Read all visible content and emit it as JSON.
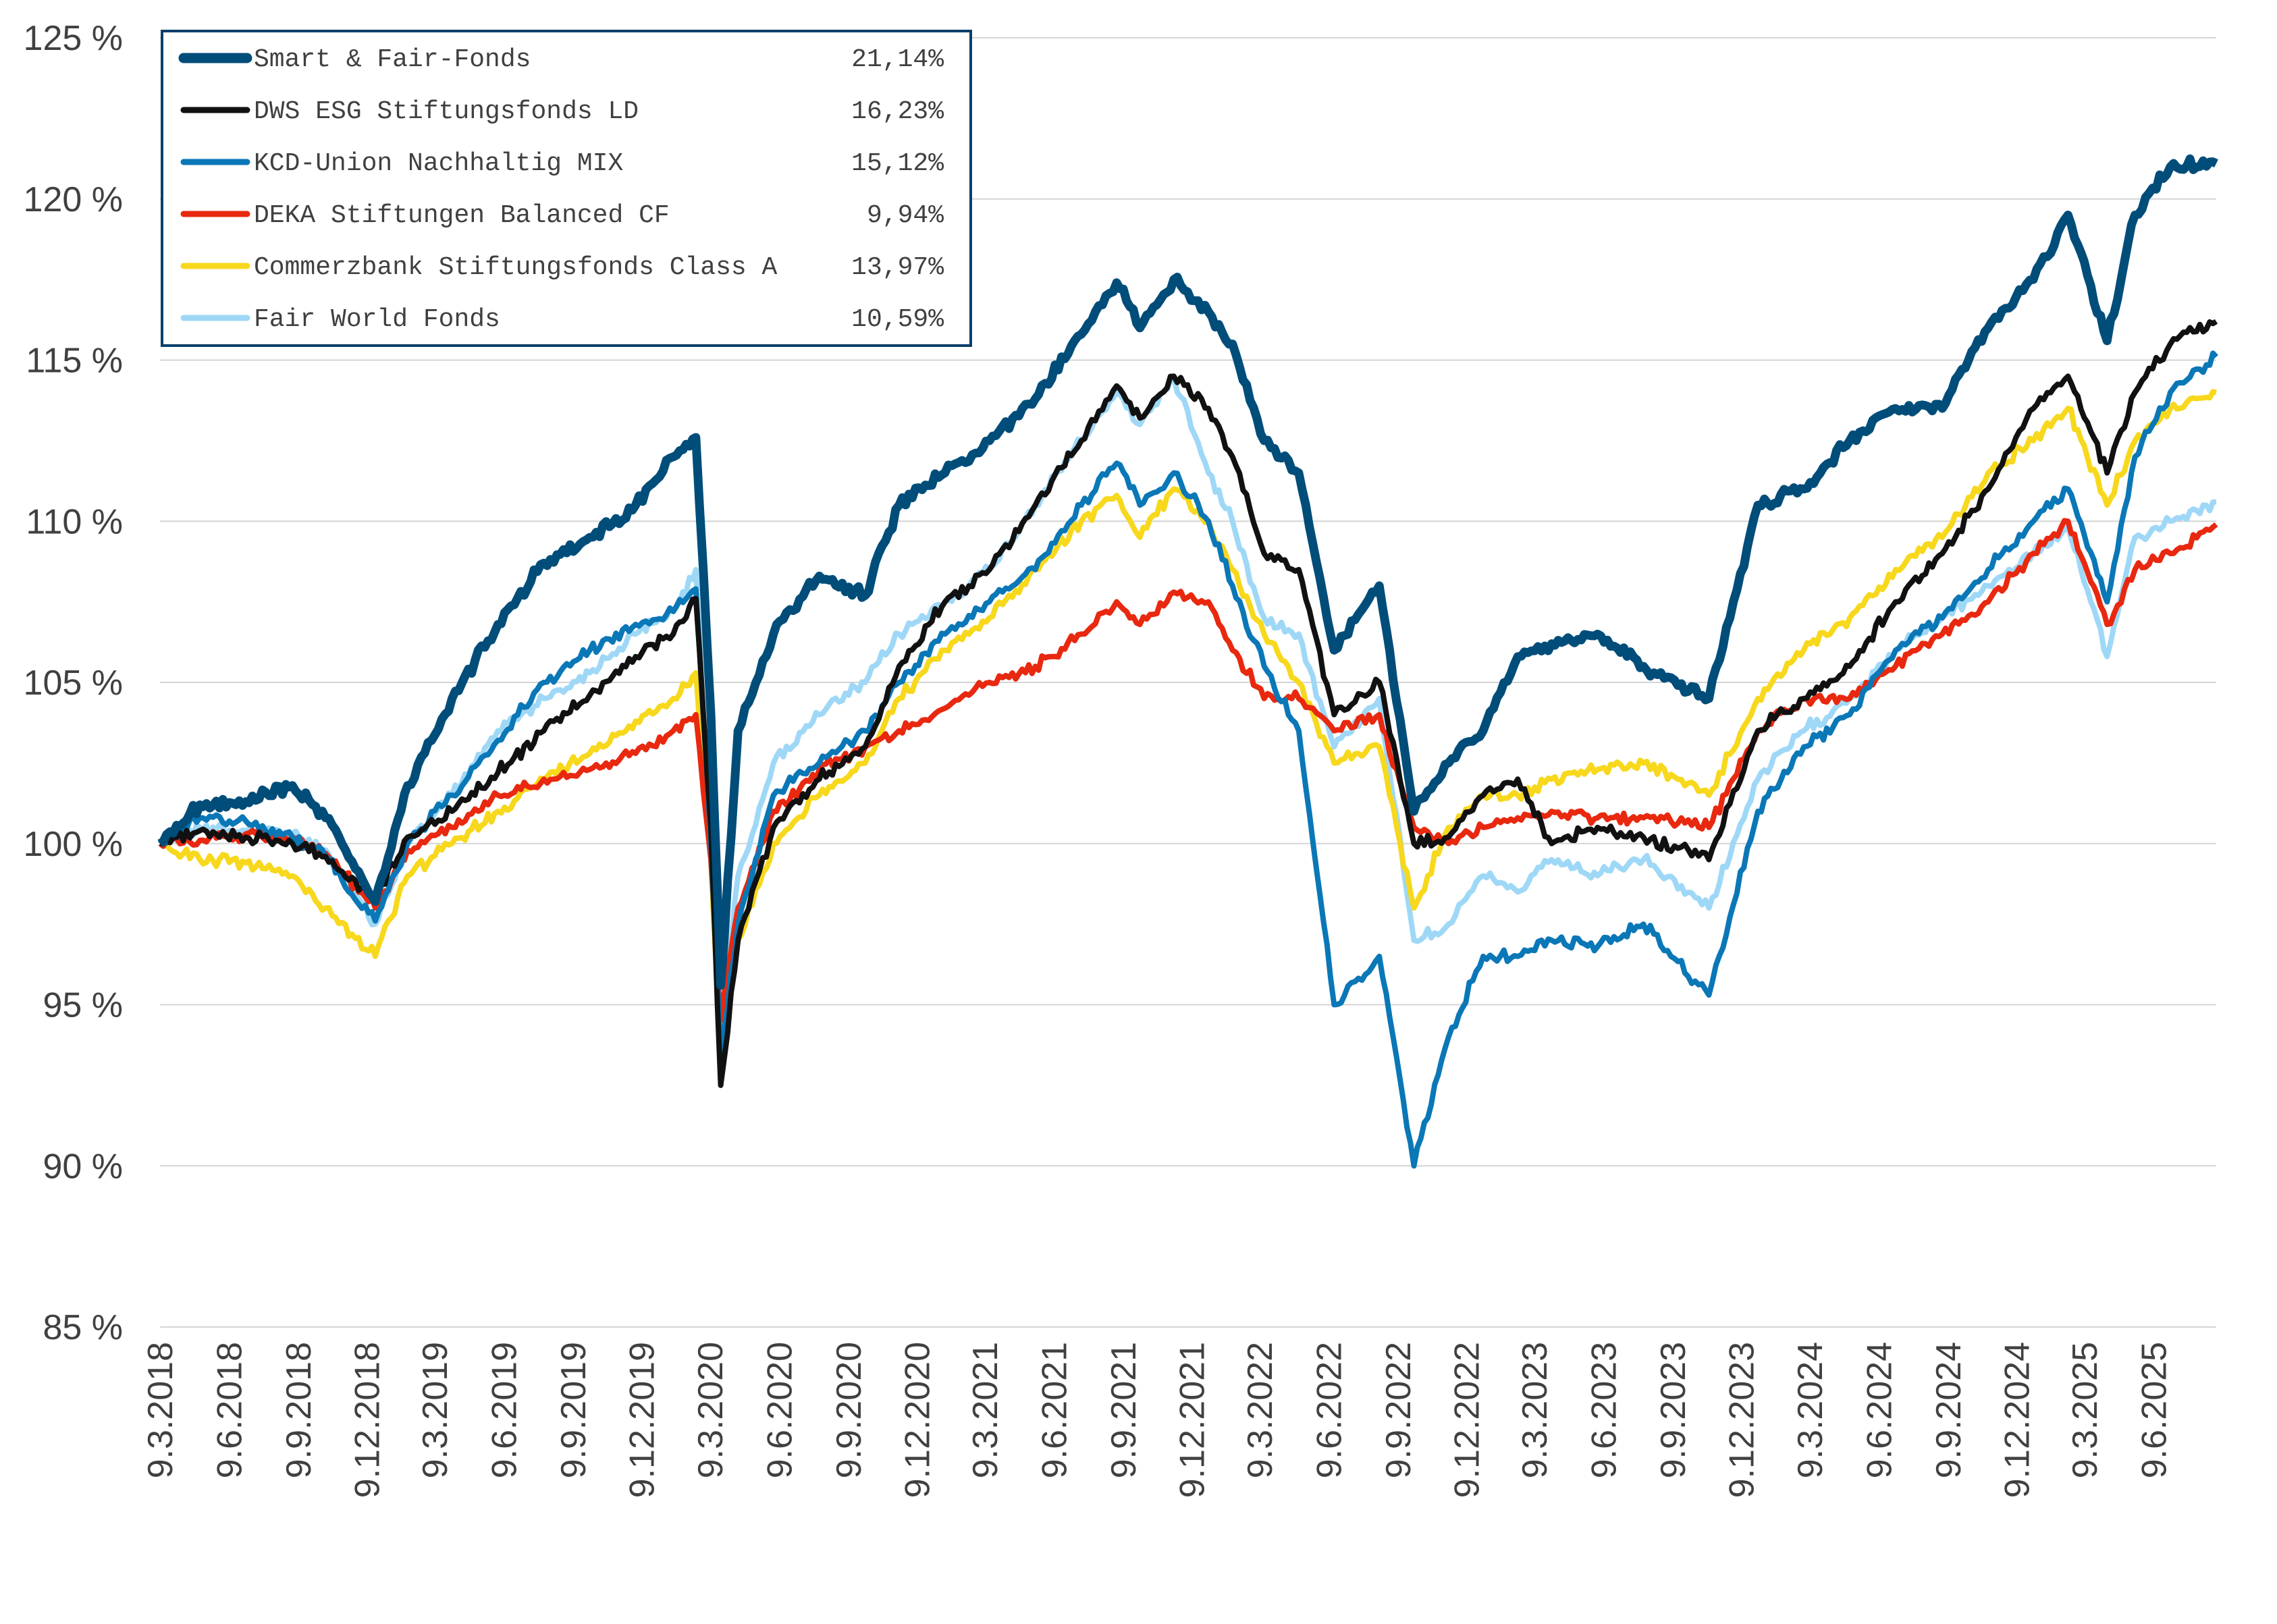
{
  "chart_data": {
    "type": "line",
    "y_unit": "%",
    "ylim": [
      85,
      125
    ],
    "yticks": [
      85,
      90,
      95,
      100,
      105,
      110,
      115,
      120,
      125
    ],
    "ytick_labels": [
      "85 %",
      "90 %",
      "95 %",
      "100 %",
      "105 %",
      "110 %",
      "115 %",
      "120 %",
      "125 %"
    ],
    "xlim": [
      "2018-03-09",
      "2025-08-31"
    ],
    "xticks": [
      "2018-03-09",
      "2018-06-09",
      "2018-09-09",
      "2018-12-09",
      "2019-03-09",
      "2019-06-09",
      "2019-09-09",
      "2019-12-09",
      "2020-03-09",
      "2020-06-09",
      "2020-09-09",
      "2020-12-09",
      "2021-03-09",
      "2021-06-09",
      "2021-09-09",
      "2021-12-09",
      "2022-03-09",
      "2022-06-09",
      "2022-09-09",
      "2022-12-09",
      "2023-03-09",
      "2023-06-09",
      "2023-09-09",
      "2023-12-09",
      "2024-03-09",
      "2024-06-09",
      "2024-09-09",
      "2024-12-09",
      "2025-03-09",
      "2025-06-09"
    ],
    "xtick_labels": [
      "9.3.2018",
      "9.6.2018",
      "9.9.2018",
      "9.12.2018",
      "9.3.2019",
      "9.6.2019",
      "9.9.2019",
      "9.12.2019",
      "9.3.2020",
      "9.6.2020",
      "9.9.2020",
      "9.12.2020",
      "9.3.2021",
      "9.6.2021",
      "9.9.2021",
      "9.12.2021",
      "9.3.2022",
      "9.6.2022",
      "9.9.2022",
      "9.12.2022",
      "9.3.2023",
      "9.6.2023",
      "9.9.2023",
      "9.12.2023",
      "9.3.2024",
      "9.6.2024",
      "9.9.2024",
      "9.12.2024",
      "9.3.2025",
      "9.6.2025"
    ],
    "grid": true,
    "legend_position": "top-left",
    "x": [
      "2018-03-09",
      "2018-05-01",
      "2018-07-01",
      "2018-09-01",
      "2018-10-15",
      "2018-12-20",
      "2019-02-01",
      "2019-04-01",
      "2019-06-01",
      "2019-08-01",
      "2019-10-01",
      "2019-12-01",
      "2020-01-20",
      "2020-02-19",
      "2020-03-10",
      "2020-03-23",
      "2020-04-15",
      "2020-06-01",
      "2020-08-01",
      "2020-10-01",
      "2020-11-15",
      "2021-01-15",
      "2021-03-15",
      "2021-05-15",
      "2021-07-15",
      "2021-08-31",
      "2021-10-01",
      "2021-11-15",
      "2021-12-31",
      "2022-02-01",
      "2022-03-15",
      "2022-04-30",
      "2022-06-16",
      "2022-08-15",
      "2022-09-30",
      "2022-11-15",
      "2022-12-31",
      "2023-02-15",
      "2023-04-01",
      "2023-06-01",
      "2023-08-01",
      "2023-10-27",
      "2023-12-31",
      "2024-03-01",
      "2024-05-01",
      "2024-07-01",
      "2024-09-01",
      "2024-11-01",
      "2024-12-31",
      "2025-02-15",
      "2025-04-08",
      "2025-05-15",
      "2025-07-01",
      "2025-08-31"
    ],
    "series": [
      {
        "name": "Smart & Fair-Fonds",
        "return_label": "21,14%",
        "color": "#004d7a",
        "width": 13,
        "values": [
          100,
          101.2,
          101.3,
          101.8,
          100.8,
          98.2,
          101.8,
          104.5,
          106.8,
          108.7,
          109.5,
          110.5,
          112.0,
          112.6,
          104.0,
          95.6,
          103.5,
          106.5,
          108.3,
          107.7,
          110.5,
          111.5,
          112.5,
          113.8,
          115.8,
          117.4,
          116.0,
          117.5,
          116.5,
          115.5,
          112.5,
          111.5,
          106.0,
          108.0,
          101.0,
          102.5,
          103.5,
          105.8,
          106.2,
          106.5,
          105.5,
          104.5,
          110.5,
          111.0,
          112.5,
          113.5,
          113.5,
          116.0,
          117.5,
          119.5,
          115.6,
          119.5,
          121.0,
          121.1
        ]
      },
      {
        "name": "DWS ESG Stiftungsfonds LD",
        "return_label": "16,23%",
        "color": "#111111",
        "width": 8,
        "values": [
          100,
          100.4,
          100.2,
          100.0,
          99.6,
          98.3,
          100.2,
          101.0,
          102.2,
          103.5,
          104.6,
          105.8,
          106.5,
          107.6,
          100.5,
          92.5,
          97.0,
          100.5,
          102.0,
          103.0,
          105.5,
          107.5,
          108.5,
          110.5,
          112.5,
          114.2,
          113.2,
          114.5,
          113.5,
          112.0,
          109.0,
          108.5,
          104.0,
          105.0,
          100.0,
          100.2,
          101.5,
          102.0,
          100.0,
          100.5,
          100.2,
          99.5,
          103.5,
          104.5,
          105.5,
          107.5,
          109.0,
          111.0,
          113.5,
          114.5,
          111.5,
          114.0,
          115.5,
          116.2
        ]
      },
      {
        "name": "KCD-Union Nachhaltig MIX",
        "return_label": "15,12%",
        "color": "#0a77b7",
        "width": 8,
        "values": [
          100,
          100.8,
          100.7,
          100.2,
          99.6,
          97.6,
          100.0,
          101.5,
          103.2,
          105.0,
          106.0,
          106.8,
          107.2,
          107.9,
          100.0,
          93.5,
          97.5,
          101.5,
          102.5,
          103.5,
          105.0,
          106.5,
          107.5,
          108.5,
          110.5,
          111.8,
          110.5,
          111.5,
          110.0,
          108.0,
          105.5,
          103.5,
          95.0,
          96.5,
          90.0,
          94.0,
          96.5,
          96.5,
          97.0,
          96.8,
          97.5,
          95.3,
          101.0,
          103.0,
          104.0,
          106.0,
          107.0,
          108.5,
          110.0,
          111.0,
          107.5,
          112.0,
          114.0,
          115.1
        ]
      },
      {
        "name": "DEKA Stiftungen Balanced CF",
        "return_label": "9,94%",
        "color": "#e8280f",
        "width": 8,
        "values": [
          100,
          100.1,
          100.3,
          100.2,
          99.7,
          98.0,
          99.8,
          100.5,
          101.5,
          102.0,
          102.3,
          102.8,
          103.5,
          104.0,
          99.5,
          94.5,
          98.0,
          101.0,
          102.3,
          103.0,
          103.5,
          104.2,
          105.0,
          105.5,
          106.5,
          107.5,
          106.8,
          107.8,
          107.5,
          106.0,
          104.5,
          104.5,
          103.5,
          104.0,
          100.5,
          100.0,
          100.5,
          100.8,
          101.0,
          100.8,
          100.8,
          100.5,
          103.5,
          104.5,
          104.5,
          105.5,
          106.5,
          107.5,
          109.0,
          110.0,
          106.8,
          108.5,
          109.0,
          109.9
        ]
      },
      {
        "name": "Commerzbank Stiftungsfonds Class A",
        "return_label": "13,97%",
        "color": "#f7d81c",
        "width": 8,
        "values": [
          100,
          99.5,
          99.4,
          99.0,
          98.0,
          96.5,
          99.0,
          100.0,
          101.0,
          102.0,
          102.8,
          103.8,
          104.5,
          105.3,
          99.5,
          93.5,
          97.0,
          100.0,
          101.5,
          102.5,
          104.5,
          106.0,
          107.0,
          108.5,
          110.0,
          110.8,
          109.5,
          111.0,
          110.0,
          108.5,
          106.5,
          105.0,
          102.5,
          103.0,
          98.0,
          100.5,
          101.5,
          101.5,
          102.0,
          102.3,
          102.5,
          101.5,
          104.5,
          106.0,
          107.0,
          108.5,
          109.5,
          111.5,
          112.5,
          113.5,
          110.5,
          112.5,
          113.5,
          114.0
        ]
      },
      {
        "name": "Fair World Fonds",
        "return_label": "10,59%",
        "color": "#9fd8f7",
        "width": 8,
        "values": [
          100,
          100.5,
          100.4,
          100.3,
          99.8,
          97.5,
          100.0,
          101.5,
          103.5,
          104.5,
          105.3,
          106.5,
          107.2,
          108.5,
          99.5,
          94.0,
          99.0,
          102.5,
          104.0,
          105.0,
          106.5,
          107.5,
          108.5,
          110.5,
          112.5,
          114.0,
          113.0,
          114.5,
          111.5,
          110.0,
          107.0,
          106.5,
          103.0,
          104.5,
          97.0,
          97.5,
          99.0,
          98.5,
          99.5,
          99.0,
          99.5,
          98.0,
          102.0,
          103.5,
          104.5,
          106.0,
          107.0,
          108.0,
          109.0,
          109.8,
          105.8,
          109.5,
          110.0,
          110.6
        ]
      }
    ]
  }
}
